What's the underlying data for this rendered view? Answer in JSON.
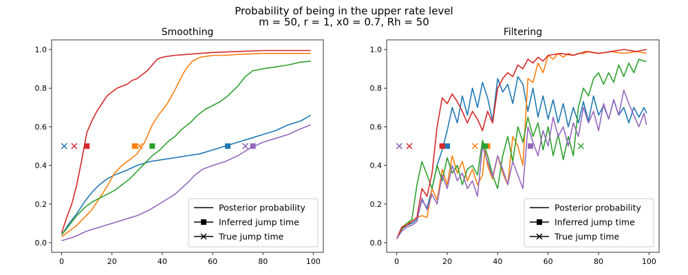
{
  "suptitle": {
    "line1": "Probability of being in the upper rate level",
    "line2": "m = 50, r = 1, x0 = 0.7, Rh = 50"
  },
  "legend": {
    "posterior": "Posterior probability",
    "inferred": "Inferred jump time",
    "true": "True jump time",
    "placement": "lower-right"
  },
  "colors": {
    "blue": "#1f77b4",
    "orange": "#ff7f0e",
    "green": "#2ca02c",
    "red": "#d62728",
    "purple": "#9467bd"
  },
  "chart_data": [
    {
      "type": "line",
      "title": "Smoothing",
      "xlim": [
        -4,
        104
      ],
      "ylim": [
        -0.05,
        1.05
      ],
      "xticks": [
        "0",
        "20",
        "40",
        "60",
        "80",
        "100"
      ],
      "yticks": [
        "0.0",
        "0.2",
        "0.4",
        "0.6",
        "0.8",
        "1.0"
      ],
      "series": [
        {
          "color": "blue",
          "x": [
            0,
            3,
            6,
            9,
            12,
            15,
            18,
            21,
            25,
            30,
            35,
            40,
            45,
            50,
            55,
            60,
            65,
            70,
            75,
            80,
            85,
            90,
            95,
            99
          ],
          "y": [
            0.04,
            0.1,
            0.15,
            0.21,
            0.26,
            0.3,
            0.33,
            0.35,
            0.37,
            0.4,
            0.42,
            0.43,
            0.44,
            0.45,
            0.46,
            0.48,
            0.5,
            0.52,
            0.54,
            0.56,
            0.58,
            0.61,
            0.63,
            0.66
          ],
          "inferred": [
            66,
            0.5
          ],
          "true": [
            1,
            0.5
          ]
        },
        {
          "color": "orange",
          "x": [
            0,
            3,
            6,
            9,
            12,
            15,
            18,
            21,
            24,
            27,
            30,
            33,
            36,
            39,
            42,
            45,
            48,
            50,
            52,
            55,
            60,
            65,
            70,
            80,
            90,
            99
          ],
          "y": [
            0.03,
            0.06,
            0.09,
            0.13,
            0.17,
            0.23,
            0.29,
            0.36,
            0.4,
            0.43,
            0.46,
            0.52,
            0.61,
            0.67,
            0.72,
            0.79,
            0.87,
            0.91,
            0.94,
            0.96,
            0.97,
            0.97,
            0.975,
            0.98,
            0.98,
            0.98
          ],
          "inferred": [
            29,
            0.5
          ],
          "true": [
            31,
            0.5
          ]
        },
        {
          "color": "green",
          "x": [
            0,
            3,
            6,
            9,
            12,
            15,
            18,
            21,
            24,
            27,
            30,
            33,
            36,
            39,
            42,
            45,
            48,
            51,
            54,
            57,
            60,
            63,
            66,
            70,
            73,
            76,
            80,
            85,
            90,
            95,
            99
          ],
          "y": [
            0.04,
            0.09,
            0.14,
            0.18,
            0.21,
            0.23,
            0.25,
            0.27,
            0.3,
            0.33,
            0.37,
            0.41,
            0.45,
            0.48,
            0.52,
            0.55,
            0.59,
            0.62,
            0.66,
            0.69,
            0.71,
            0.73,
            0.76,
            0.81,
            0.86,
            0.89,
            0.9,
            0.91,
            0.92,
            0.935,
            0.94
          ],
          "inferred": [
            36,
            0.5
          ],
          "true": [
            73,
            0.5
          ]
        },
        {
          "color": "red",
          "x": [
            0,
            2,
            4,
            6,
            8,
            10,
            12,
            14,
            16,
            18,
            20,
            22,
            24,
            26,
            28,
            30,
            32,
            34,
            36,
            38,
            40,
            42,
            45,
            50,
            55,
            60,
            70,
            80,
            90,
            99
          ],
          "y": [
            0.05,
            0.13,
            0.2,
            0.3,
            0.43,
            0.57,
            0.63,
            0.68,
            0.72,
            0.76,
            0.78,
            0.8,
            0.81,
            0.82,
            0.84,
            0.85,
            0.87,
            0.89,
            0.92,
            0.95,
            0.96,
            0.965,
            0.97,
            0.975,
            0.98,
            0.985,
            0.99,
            0.995,
            0.995,
            0.995
          ],
          "inferred": [
            10,
            0.5
          ],
          "true": [
            5,
            0.5
          ]
        },
        {
          "color": "purple",
          "x": [
            0,
            5,
            10,
            15,
            20,
            25,
            30,
            35,
            40,
            45,
            50,
            53,
            56,
            60,
            65,
            70,
            75,
            80,
            85,
            90,
            95,
            99
          ],
          "y": [
            0.01,
            0.03,
            0.06,
            0.08,
            0.1,
            0.12,
            0.14,
            0.17,
            0.21,
            0.25,
            0.31,
            0.35,
            0.38,
            0.4,
            0.42,
            0.45,
            0.49,
            0.52,
            0.54,
            0.56,
            0.59,
            0.61
          ],
          "inferred": [
            76,
            0.5
          ],
          "true": [
            73,
            0.5
          ]
        }
      ]
    },
    {
      "type": "line",
      "title": "Filtering",
      "xlim": [
        -4,
        104
      ],
      "ylim": [
        -0.05,
        1.05
      ],
      "xticks": [
        "0",
        "20",
        "40",
        "60",
        "80",
        "100"
      ],
      "yticks": [
        "0.0",
        "0.2",
        "0.4",
        "0.6",
        "0.8",
        "1.0"
      ],
      "series": [
        {
          "color": "blue",
          "x": [
            0,
            2,
            4,
            6,
            8,
            10,
            12,
            14,
            16,
            18,
            20,
            22,
            24,
            26,
            28,
            30,
            32,
            34,
            36,
            38,
            40,
            42,
            44,
            46,
            48,
            50,
            52,
            54,
            56,
            58,
            60,
            62,
            64,
            66,
            68,
            70,
            72,
            74,
            76,
            78,
            80,
            82,
            84,
            86,
            88,
            90,
            92,
            94,
            96,
            98,
            99
          ],
          "y": [
            0.02,
            0.07,
            0.09,
            0.1,
            0.12,
            0.22,
            0.18,
            0.28,
            0.4,
            0.48,
            0.58,
            0.7,
            0.62,
            0.76,
            0.66,
            0.8,
            0.7,
            0.83,
            0.75,
            0.63,
            0.85,
            0.78,
            0.82,
            0.72,
            0.86,
            0.82,
            0.68,
            0.8,
            0.65,
            0.76,
            0.64,
            0.74,
            0.62,
            0.72,
            0.6,
            0.7,
            0.62,
            0.73,
            0.63,
            0.76,
            0.66,
            0.71,
            0.64,
            0.74,
            0.66,
            0.7,
            0.62,
            0.7,
            0.65,
            0.7,
            0.67
          ],
          "inferred": [
            20,
            0.5
          ],
          "true": [
            1,
            0.5
          ]
        },
        {
          "color": "orange",
          "x": [
            0,
            2,
            4,
            6,
            8,
            10,
            12,
            14,
            16,
            18,
            20,
            22,
            24,
            26,
            28,
            30,
            32,
            34,
            35,
            36,
            38,
            40,
            42,
            44,
            46,
            48,
            50,
            52,
            54,
            56,
            58,
            60,
            62,
            64,
            66,
            68,
            70,
            72,
            74,
            76,
            80,
            85,
            90,
            95,
            99
          ],
          "y": [
            0.02,
            0.08,
            0.1,
            0.11,
            0.13,
            0.14,
            0.13,
            0.28,
            0.22,
            0.38,
            0.3,
            0.45,
            0.36,
            0.42,
            0.32,
            0.38,
            0.3,
            0.35,
            0.48,
            0.4,
            0.33,
            0.45,
            0.36,
            0.3,
            0.55,
            0.5,
            0.4,
            0.85,
            0.83,
            0.93,
            0.88,
            0.97,
            0.95,
            0.98,
            0.96,
            0.98,
            0.97,
            0.98,
            0.98,
            0.99,
            0.98,
            0.99,
            0.98,
            0.99,
            0.98
          ],
          "inferred": [
            36,
            0.5
          ],
          "true": [
            31,
            0.5
          ]
        },
        {
          "color": "green",
          "x": [
            0,
            2,
            4,
            6,
            8,
            10,
            12,
            14,
            16,
            18,
            20,
            22,
            24,
            26,
            28,
            30,
            32,
            34,
            36,
            38,
            40,
            42,
            44,
            46,
            48,
            50,
            52,
            54,
            56,
            58,
            60,
            62,
            64,
            66,
            68,
            70,
            72,
            74,
            76,
            78,
            80,
            82,
            84,
            86,
            88,
            90,
            92,
            94,
            96,
            98,
            99
          ],
          "y": [
            0.02,
            0.07,
            0.1,
            0.12,
            0.3,
            0.42,
            0.35,
            0.28,
            0.4,
            0.32,
            0.44,
            0.36,
            0.4,
            0.3,
            0.38,
            0.4,
            0.35,
            0.53,
            0.45,
            0.35,
            0.28,
            0.45,
            0.55,
            0.42,
            0.6,
            0.52,
            0.65,
            0.55,
            0.62,
            0.48,
            0.6,
            0.45,
            0.56,
            0.43,
            0.55,
            0.45,
            0.7,
            0.8,
            0.76,
            0.85,
            0.88,
            0.82,
            0.88,
            0.83,
            0.92,
            0.86,
            0.93,
            0.88,
            0.95,
            0.94,
            0.94
          ],
          "inferred": [
            35,
            0.5
          ],
          "true": [
            73,
            0.5
          ]
        },
        {
          "color": "red",
          "x": [
            0,
            2,
            4,
            6,
            8,
            10,
            12,
            14,
            16,
            18,
            20,
            22,
            24,
            26,
            28,
            30,
            32,
            34,
            36,
            38,
            40,
            42,
            44,
            46,
            48,
            50,
            52,
            54,
            56,
            58,
            60,
            65,
            70,
            75,
            80,
            85,
            90,
            95,
            99
          ],
          "y": [
            0.02,
            0.08,
            0.09,
            0.11,
            0.13,
            0.28,
            0.24,
            0.36,
            0.6,
            0.75,
            0.72,
            0.77,
            0.73,
            0.68,
            0.62,
            0.68,
            0.64,
            0.58,
            0.68,
            0.62,
            0.8,
            0.85,
            0.88,
            0.86,
            0.92,
            0.9,
            0.95,
            0.93,
            0.96,
            0.94,
            0.97,
            0.98,
            0.97,
            0.99,
            0.98,
            0.99,
            1.0,
            0.99,
            1.0
          ],
          "inferred": [
            18,
            0.5
          ],
          "true": [
            5,
            0.5
          ]
        },
        {
          "color": "purple",
          "x": [
            0,
            2,
            4,
            6,
            8,
            10,
            12,
            14,
            16,
            18,
            20,
            22,
            24,
            26,
            28,
            30,
            32,
            34,
            36,
            38,
            40,
            42,
            44,
            46,
            48,
            50,
            52,
            54,
            56,
            58,
            60,
            62,
            64,
            66,
            68,
            70,
            72,
            74,
            76,
            78,
            80,
            82,
            84,
            86,
            88,
            90,
            92,
            94,
            96,
            98,
            99
          ],
          "y": [
            0.02,
            0.06,
            0.08,
            0.09,
            0.11,
            0.23,
            0.17,
            0.25,
            0.2,
            0.35,
            0.28,
            0.4,
            0.32,
            0.36,
            0.28,
            0.32,
            0.24,
            0.5,
            0.42,
            0.34,
            0.45,
            0.38,
            0.3,
            0.42,
            0.35,
            0.28,
            0.6,
            0.52,
            0.45,
            0.58,
            0.5,
            0.65,
            0.55,
            0.6,
            0.5,
            0.62,
            0.55,
            0.7,
            0.62,
            0.68,
            0.58,
            0.72,
            0.64,
            0.74,
            0.66,
            0.79,
            0.72,
            0.66,
            0.6,
            0.67,
            0.61
          ],
          "inferred": [
            53,
            0.5
          ],
          "true": [
            1,
            0.5
          ]
        }
      ]
    }
  ]
}
